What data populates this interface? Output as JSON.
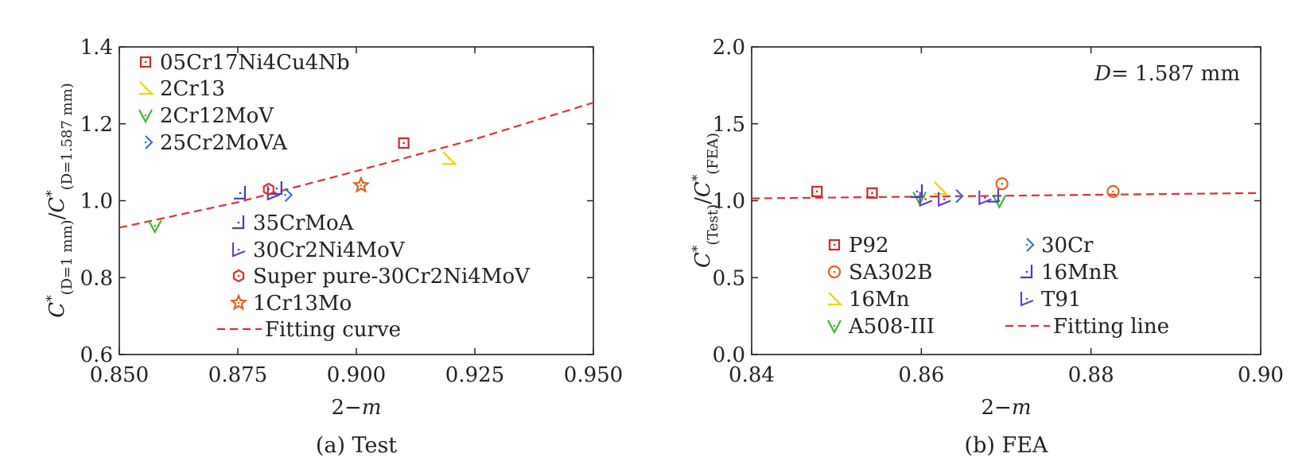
{
  "chart_data": [
    {
      "type": "scatter",
      "caption": "(a) Test",
      "xlabel_parts": [
        "2−",
        "m"
      ],
      "ylabel_parts": {
        "c1": "C",
        "s1": "*",
        "sub1": "(D=1 mm)",
        "slash": "/",
        "c2": "C",
        "s2": "*",
        "sub2": "(D=1.587 mm)"
      },
      "xlim": [
        0.85,
        0.95
      ],
      "ylim": [
        0.6,
        1.4
      ],
      "xticks": [
        "0.850",
        "0.875",
        "0.900",
        "0.925",
        "0.950"
      ],
      "yticks": [
        "0.6",
        "0.8",
        "1.0",
        "1.2",
        "1.4"
      ],
      "grid": false,
      "series": [
        {
          "name": "05Cr17Ni4Cu4Nb",
          "color": "#d62728",
          "marker": "square",
          "points": [
            [
              0.91,
              1.15
            ]
          ]
        },
        {
          "name": "2Cr13",
          "color": "#e6d800",
          "marker": "tri-right",
          "points": [
            [
              0.9195,
              1.11
            ]
          ]
        },
        {
          "name": "2Cr12MoV",
          "color": "#3cb82e",
          "marker": "tri-down",
          "points": [
            [
              0.8575,
              0.935
            ]
          ]
        },
        {
          "name": "25Cr2MoVA",
          "color": "#3a6fd8",
          "marker": "diamond",
          "points": [
            [
              0.885,
              1.015
            ]
          ]
        },
        {
          "name": "35CrMoA",
          "color": "#3a3fc0",
          "marker": "tri-left",
          "points": [
            [
              0.8755,
              1.02
            ],
            [
              0.8832,
              1.032
            ]
          ]
        },
        {
          "name": "30Cr2Ni4MoV",
          "color": "#6a3fc0",
          "marker": "tri-right-in",
          "points": [
            [
              0.8825,
              1.02
            ]
          ]
        },
        {
          "name": "Super pure-30Cr2Ni4MoV",
          "color": "#e0302a",
          "marker": "hexagon",
          "points": [
            [
              0.8815,
              1.03
            ]
          ]
        },
        {
          "name": "1Cr13Mo",
          "color": "#e8601c",
          "marker": "star",
          "points": [
            [
              0.901,
              1.04
            ]
          ]
        }
      ],
      "fit": {
        "name": "Fitting curve",
        "color": "#e03030",
        "style": "dashed",
        "x": [
          0.85,
          0.875,
          0.9,
          0.925,
          0.95
        ],
        "y": [
          0.93,
          0.996,
          1.077,
          1.16,
          1.255
        ]
      }
    },
    {
      "type": "scatter",
      "caption": "(b) FEA",
      "annotation_parts": {
        "var": "D",
        "eq": "= 1.587 mm"
      },
      "xlabel_parts": [
        "2−",
        "m"
      ],
      "ylabel_parts": {
        "c1": "C",
        "s1": "*",
        "sub1": "(Test)",
        "slash": "/",
        "c2": "C",
        "s2": "*",
        "sub2": "(FEA)"
      },
      "xlim": [
        0.84,
        0.9
      ],
      "ylim": [
        0.0,
        2.0
      ],
      "xticks": [
        "0.84",
        "0.86",
        "0.88",
        "0.90"
      ],
      "yticks": [
        "0.0",
        "0.5",
        "1.0",
        "1.5",
        "2.0"
      ],
      "grid": false,
      "series": [
        {
          "name": "P92",
          "color": "#d62728",
          "marker": "square",
          "points": [
            [
              0.8477,
              1.06
            ],
            [
              0.8542,
              1.05
            ]
          ]
        },
        {
          "name": "SA302B",
          "color": "#e8601c",
          "marker": "circle",
          "points": [
            [
              0.8695,
              1.11
            ],
            [
              0.8826,
              1.06
            ]
          ]
        },
        {
          "name": "16Mn",
          "color": "#e6d800",
          "marker": "tri-right",
          "points": [
            [
              0.8622,
              1.08
            ]
          ]
        },
        {
          "name": "A508-III",
          "color": "#3cb82e",
          "marker": "tri-down",
          "points": [
            [
              0.8598,
              1.02
            ],
            [
              0.8692,
              1.0
            ]
          ]
        },
        {
          "name": "30Cr",
          "color": "#3a6fd8",
          "marker": "diamond",
          "points": [
            [
              0.8641,
              1.03
            ]
          ]
        },
        {
          "name": "16MnR",
          "color": "#3a3fc0",
          "marker": "tri-left",
          "points": [
            [
              0.8595,
              1.06
            ],
            [
              0.8685,
              1.03
            ]
          ]
        },
        {
          "name": "T91",
          "color": "#6a3fc0",
          "marker": "tri-right-in",
          "points": [
            [
              0.8605,
              1.01
            ],
            [
              0.8627,
              1.01
            ],
            [
              0.8675,
              1.02
            ]
          ]
        }
      ],
      "fit": {
        "name": "Fitting line",
        "color": "#e03030",
        "style": "dashed",
        "x": [
          0.84,
          0.9
        ],
        "y": [
          1.015,
          1.05
        ]
      }
    }
  ]
}
